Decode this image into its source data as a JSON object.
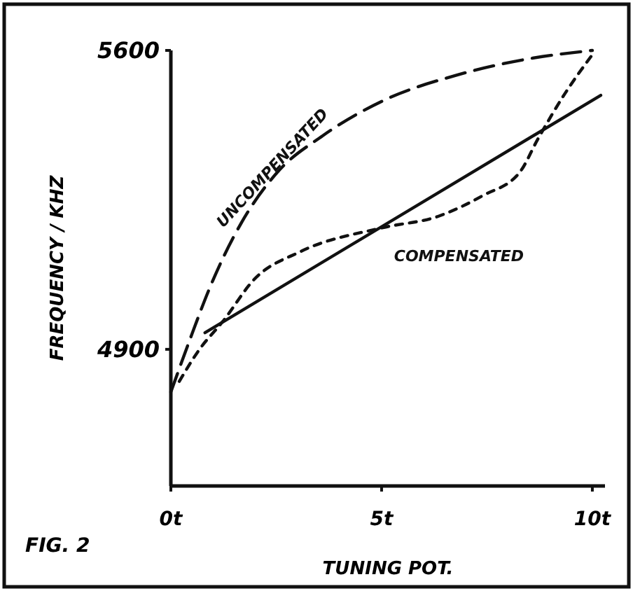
{
  "chart_data": {
    "type": "line",
    "xlabel": "TUNING POT.",
    "ylabel": "FREQUENCY / KHZ",
    "annotations": [
      "FIG. 2"
    ],
    "xlim": [
      0,
      10.3
    ],
    "ylim": [
      4580,
      5600
    ],
    "xticks": [
      {
        "value": 0,
        "label": "0t"
      },
      {
        "value": 5,
        "label": "5t"
      },
      {
        "value": 10,
        "label": "10t"
      }
    ],
    "yticks": [
      4900,
      5600
    ],
    "grid": false,
    "legend": false,
    "marker": "none",
    "series": [
      {
        "name": "UNCOMPENSATED",
        "color": "#111111",
        "line_style": "dashed",
        "x": [
          0,
          0.49,
          0.91,
          1.66,
          2.53,
          3.6,
          5.03,
          6.85,
          8.47,
          10
        ],
        "values": [
          4800,
          4933,
          5041,
          5194,
          5315,
          5400,
          5482,
          5544,
          5580,
          5600
        ]
      },
      {
        "name": "COMPENSATED",
        "color": "#111111",
        "line_style": "dotted",
        "x": [
          0.2,
          0.68,
          1.23,
          1.98,
          3.08,
          5.03,
          6.33,
          7.4,
          8.28,
          8.7,
          9.35,
          10
        ],
        "values": [
          4825,
          4900,
          4965,
          5064,
          5129,
          5185,
          5211,
          5260,
          5315,
          5391,
          5499,
          5590
        ]
      },
      {
        "color": "#111111",
        "line_style": "solid",
        "x": [
          0.81,
          10.2
        ],
        "values": [
          4939,
          5495
        ]
      }
    ]
  }
}
